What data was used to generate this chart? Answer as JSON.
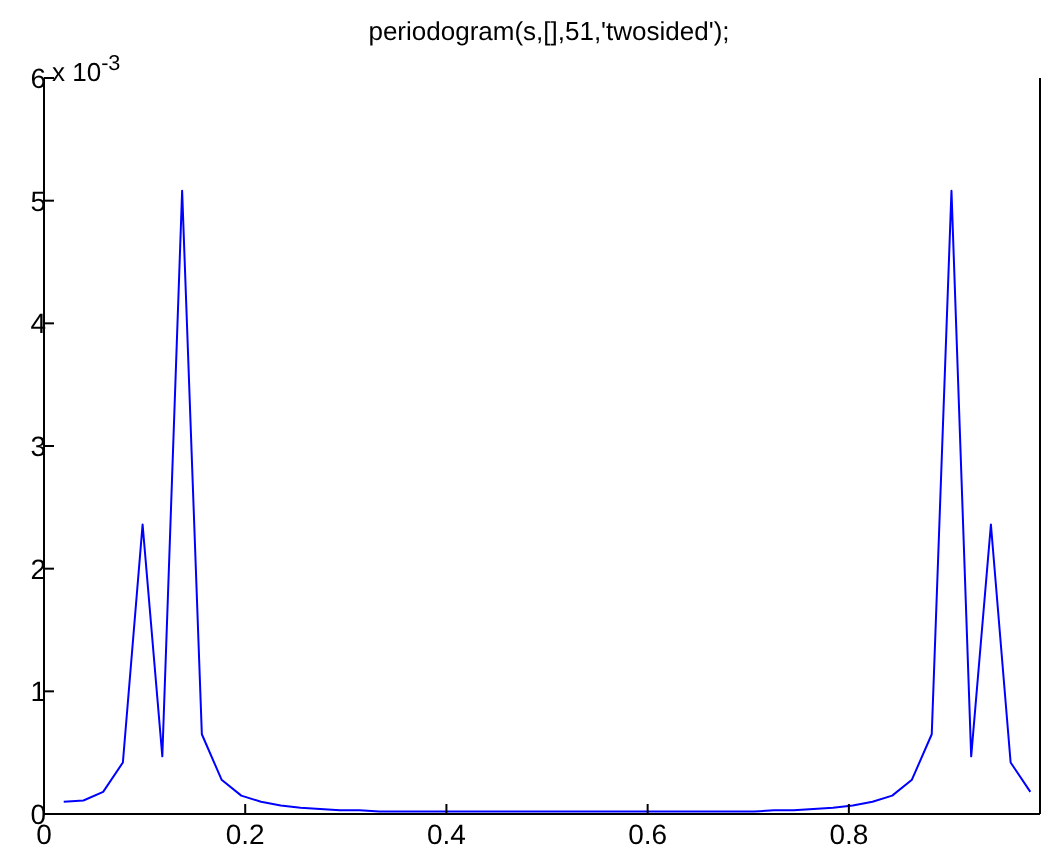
{
  "chart_data": {
    "type": "line",
    "title": "periodogram(s,[],51,'twosided');",
    "annotations": [
      "x 10$^{-3}$"
    ],
    "x": [
      0.0196,
      0.0392,
      0.0588,
      0.0784,
      0.098,
      0.1176,
      0.1373,
      0.1569,
      0.1765,
      0.1961,
      0.2157,
      0.2353,
      0.2549,
      0.2745,
      0.2941,
      0.3137,
      0.3333,
      0.3529,
      0.3725,
      0.3922,
      0.4118,
      0.4314,
      0.451,
      0.4706,
      0.4902,
      0.5098,
      0.5294,
      0.549,
      0.5686,
      0.5882,
      0.6078,
      0.6275,
      0.6471,
      0.6667,
      0.6863,
      0.7059,
      0.7255,
      0.7451,
      0.7647,
      0.7843,
      0.8039,
      0.8235,
      0.8431,
      0.8627,
      0.8824,
      0.902,
      0.9216,
      0.9412,
      0.9608,
      0.9804
    ],
    "series": [
      {
        "color": "#0000ff",
        "values": [
          0.1,
          0.11,
          0.18,
          0.42,
          2.36,
          0.47,
          5.08,
          0.65,
          0.28,
          0.15,
          0.1,
          0.07,
          0.05,
          0.04,
          0.03,
          0.03,
          0.02,
          0.02,
          0.02,
          0.02,
          0.02,
          0.02,
          0.02,
          0.02,
          0.02,
          0.02,
          0.02,
          0.02,
          0.02,
          0.02,
          0.02,
          0.02,
          0.02,
          0.02,
          0.02,
          0.02,
          0.03,
          0.03,
          0.04,
          0.05,
          0.07,
          0.1,
          0.15,
          0.28,
          0.65,
          5.08,
          0.47,
          2.36,
          0.42,
          0.18
        ]
      }
    ],
    "xlim": [
      0,
      0.99
    ],
    "xticks": [
      0,
      0.2,
      0.4,
      0.6,
      0.8
    ],
    "ylim": [
      0,
      6
    ],
    "yticks": [
      0,
      1,
      2,
      3,
      4,
      5,
      6
    ],
    "grid": false,
    "legend": false,
    "marker": "none",
    "line_style": "solid"
  }
}
